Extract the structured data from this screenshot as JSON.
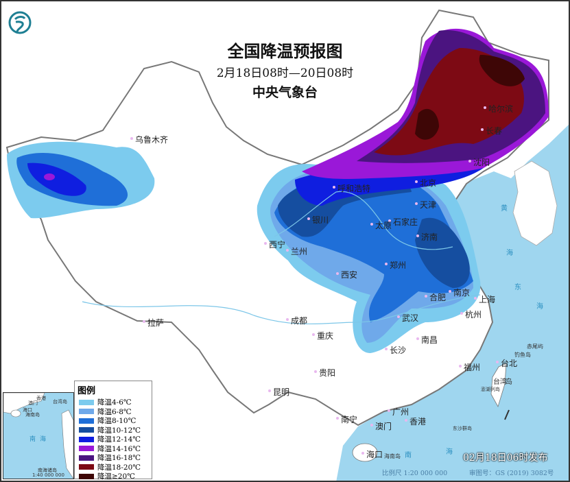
{
  "header": {
    "title": "全国降温预报图",
    "period": "2月18日08时—20日08时",
    "issuer": "中央气象台",
    "logo": "cma-dragon-logo"
  },
  "legend": {
    "title": "图例",
    "items": [
      {
        "label": "降温4-6℃",
        "color": "#7ccbee"
      },
      {
        "label": "降温6-8℃",
        "color": "#6fa9ea"
      },
      {
        "label": "降温8-10℃",
        "color": "#1f6fd8"
      },
      {
        "label": "降温10-12℃",
        "color": "#154ea0"
      },
      {
        "label": "降温12-14℃",
        "color": "#0f1ee0"
      },
      {
        "label": "降温14-16℃",
        "color": "#9a18d8"
      },
      {
        "label": "降温16-18℃",
        "color": "#4b1480"
      },
      {
        "label": "降温18-20℃",
        "color": "#7d0a14"
      },
      {
        "label": "降温≥20℃",
        "color": "#3e0606"
      }
    ]
  },
  "cities": [
    "乌鲁木齐",
    "哈尔滨",
    "长春",
    "沈阳",
    "北京",
    "天津",
    "呼和浩特",
    "石家庄",
    "太原",
    "银川",
    "济南",
    "西宁",
    "兰州",
    "郑州",
    "西安",
    "合肥",
    "南京",
    "上海",
    "武汉",
    "杭州",
    "成都",
    "拉萨",
    "重庆",
    "长沙",
    "南昌",
    "贵阳",
    "福州",
    "台北",
    "昆明",
    "南宁",
    "广州",
    "澳门",
    "香港",
    "海口"
  ],
  "seas": [
    "黄",
    "海",
    "东",
    "海",
    "南",
    "海",
    "海南岛",
    "钓鱼岛",
    "赤尾屿",
    "台湾",
    "岛",
    "澎湖列岛",
    "东沙群岛"
  ],
  "inset": {
    "labels": [
      "南海",
      "香港",
      "澳门",
      "台湾岛",
      "海口",
      "海南岛",
      "南海诸岛"
    ],
    "scale": "1:40 000 000"
  },
  "footer": {
    "published": "02月18日06时发布",
    "scale": "比例尺 1:20 000 000",
    "review_no": "审图号：GS (2019) 3082号"
  },
  "colors": {
    "sea": "#9fd6ef",
    "land": "#ffffff",
    "border": "#777777"
  }
}
